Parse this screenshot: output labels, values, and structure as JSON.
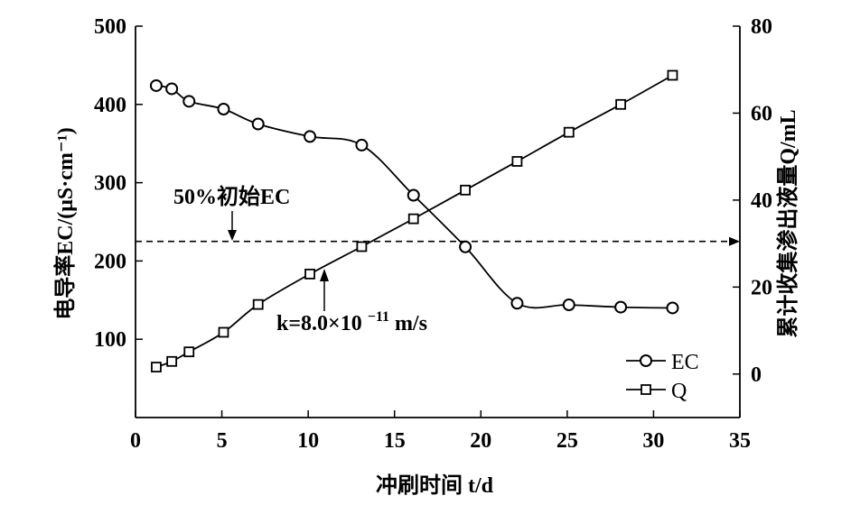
{
  "chart_data": {
    "type": "line",
    "xlabel": "冲刷时间 t/d",
    "ylabel_left": "电导率EC/(μS·cm⁻¹)",
    "ylabel_right": "累计收集渗出液量Q/mL",
    "xlim": [
      0,
      35
    ],
    "ylim_left": [
      0,
      500
    ],
    "ylim_right": [
      -10,
      80
    ],
    "xticks": [
      0,
      5,
      10,
      15,
      20,
      25,
      30,
      35
    ],
    "yticks_left": [
      100,
      200,
      300,
      400,
      500
    ],
    "yticks_right": [
      0,
      20,
      40,
      60,
      80
    ],
    "grid": false,
    "legend_position": "bottom-right",
    "series": [
      {
        "name": "EC",
        "axis": "left",
        "marker": "circle",
        "x": [
          1.2,
          2.1,
          3.1,
          5.1,
          7.1,
          10.1,
          13.1,
          16.1,
          19.1,
          22.1,
          25.1,
          28.1,
          31.1
        ],
        "y": [
          424,
          420,
          404,
          394,
          375,
          359,
          348,
          284,
          218,
          146,
          144,
          141,
          140
        ]
      },
      {
        "name": "Q",
        "axis": "right",
        "marker": "square",
        "x": [
          1.2,
          2.1,
          3.1,
          5.1,
          7.1,
          10.1,
          13.1,
          16.1,
          19.1,
          22.1,
          25.1,
          28.1,
          31.1
        ],
        "y": [
          1.6,
          2.9,
          5.1,
          9.6,
          16.0,
          23.0,
          29.3,
          35.7,
          42.3,
          48.9,
          55.6,
          62.0,
          68.7
        ]
      }
    ],
    "reference_line": {
      "value": 225,
      "axis": "left",
      "style": "dashed",
      "label": "50%初始EC"
    },
    "annotations": [
      {
        "text": "50%初始EC",
        "arrow_to_x": 5.7
      },
      {
        "text": "k=8.0×10",
        "superscript": "−11",
        "suffix": " m/s",
        "arrow_to_x": 11.0
      }
    ],
    "line_color": "#000000"
  }
}
